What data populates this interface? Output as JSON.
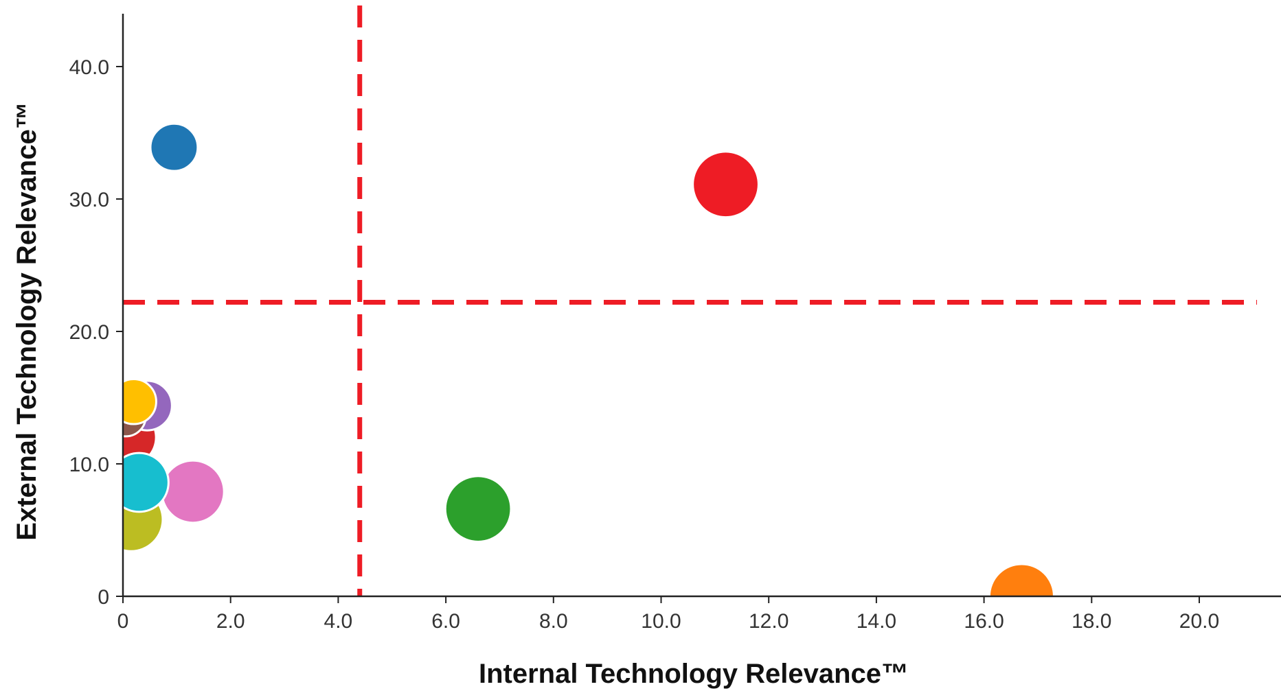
{
  "chart_data": {
    "type": "scatter",
    "xlabel": "Internal Technology Relevance™",
    "ylabel": "External Technology Relevance™",
    "xlim": [
      0,
      21.5
    ],
    "ylim": [
      0,
      44
    ],
    "x_ticks": [
      {
        "value": 0,
        "label": "0"
      },
      {
        "value": 2,
        "label": "2.0"
      },
      {
        "value": 4,
        "label": "4.0"
      },
      {
        "value": 6,
        "label": "6.0"
      },
      {
        "value": 8,
        "label": "8.0"
      },
      {
        "value": 10,
        "label": "10.0"
      },
      {
        "value": 12,
        "label": "12.0"
      },
      {
        "value": 14,
        "label": "14.0"
      },
      {
        "value": 16,
        "label": "16.0"
      },
      {
        "value": 18,
        "label": "18.0"
      },
      {
        "value": 20,
        "label": "20.0"
      }
    ],
    "y_ticks": [
      {
        "value": 0,
        "label": "0"
      },
      {
        "value": 10,
        "label": "10.0"
      },
      {
        "value": 20,
        "label": "20.0"
      },
      {
        "value": 30,
        "label": "30.0"
      },
      {
        "value": 40,
        "label": "40.0"
      }
    ],
    "reference_lines": {
      "x": 4.4,
      "y": 22.2,
      "color": "#ee1c25"
    },
    "grid": false,
    "legend": "none",
    "points": [
      {
        "x": 0.15,
        "y": 5.8,
        "size": 5.5,
        "color": "#bcbd22"
      },
      {
        "x": 0.1,
        "y": 12.0,
        "size": 4.8,
        "color": "#d62728"
      },
      {
        "x": 0.45,
        "y": 14.4,
        "size": 4.3,
        "color": "#9467bd"
      },
      {
        "x": 0.05,
        "y": 13.6,
        "size": 3.5,
        "color": "#8c564b"
      },
      {
        "x": 0.2,
        "y": 14.7,
        "size": 3.9,
        "color": "#ffbf00"
      },
      {
        "x": 1.3,
        "y": 7.9,
        "size": 5.4,
        "color": "#e377c2"
      },
      {
        "x": 0.3,
        "y": 8.6,
        "size": 5.1,
        "color": "#17becf"
      },
      {
        "x": 0.95,
        "y": 33.9,
        "size": 4.1,
        "color": "#1f77b4"
      },
      {
        "x": 11.2,
        "y": 31.1,
        "size": 5.7,
        "color": "#ee1c25"
      },
      {
        "x": 6.6,
        "y": 6.6,
        "size": 5.7,
        "color": "#2ca02c"
      },
      {
        "x": 16.7,
        "y": 0.0,
        "size": 5.6,
        "color": "#ff7f0e"
      }
    ]
  }
}
